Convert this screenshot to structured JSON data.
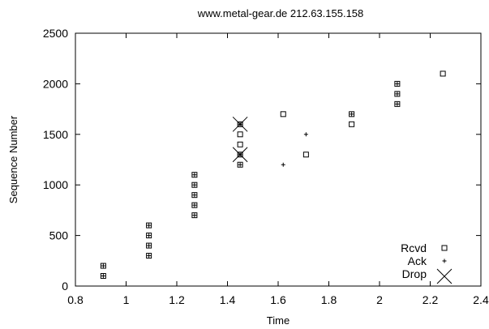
{
  "chart_data": {
    "type": "scatter",
    "title": "www.metal-gear.de 212.63.155.158",
    "xlabel": "Time",
    "ylabel": "Sequence Number",
    "xlim": [
      0.8,
      2.4
    ],
    "ylim": [
      0,
      2500
    ],
    "xticks": [
      0.8,
      1,
      1.2,
      1.4,
      1.6,
      1.8,
      2,
      2.2,
      2.4
    ],
    "yticks": [
      0,
      500,
      1000,
      1500,
      2000,
      2500
    ],
    "xtick_labels": [
      "0.8",
      "1",
      "1.2",
      "1.4",
      "1.6",
      "1.8",
      "2",
      "2.2",
      "2.4"
    ],
    "ytick_labels": [
      "0",
      "500",
      "1000",
      "1500",
      "2000",
      "2500"
    ],
    "grid": false,
    "legend_position": "bottom-right",
    "series": [
      {
        "name": "Rcvd",
        "marker": "square",
        "points": [
          [
            0.91,
            100
          ],
          [
            0.91,
            200
          ],
          [
            1.09,
            300
          ],
          [
            1.09,
            400
          ],
          [
            1.09,
            500
          ],
          [
            1.09,
            600
          ],
          [
            1.27,
            700
          ],
          [
            1.27,
            800
          ],
          [
            1.27,
            900
          ],
          [
            1.27,
            1000
          ],
          [
            1.27,
            1100
          ],
          [
            1.45,
            1200
          ],
          [
            1.45,
            1300
          ],
          [
            1.45,
            1400
          ],
          [
            1.45,
            1500
          ],
          [
            1.45,
            1600
          ],
          [
            1.62,
            1700
          ],
          [
            1.71,
            1300
          ],
          [
            1.89,
            1600
          ],
          [
            1.89,
            1700
          ],
          [
            2.07,
            1800
          ],
          [
            2.07,
            1900
          ],
          [
            2.07,
            2000
          ],
          [
            2.25,
            2100
          ]
        ]
      },
      {
        "name": "Ack",
        "marker": "plus",
        "points": [
          [
            0.91,
            100
          ],
          [
            0.91,
            200
          ],
          [
            1.09,
            300
          ],
          [
            1.09,
            400
          ],
          [
            1.09,
            500
          ],
          [
            1.09,
            600
          ],
          [
            1.27,
            700
          ],
          [
            1.27,
            800
          ],
          [
            1.27,
            900
          ],
          [
            1.27,
            1000
          ],
          [
            1.27,
            1100
          ],
          [
            1.45,
            1200
          ],
          [
            1.45,
            1300
          ],
          [
            1.45,
            1600
          ],
          [
            1.62,
            1200
          ],
          [
            1.71,
            1500
          ],
          [
            1.89,
            1700
          ],
          [
            2.07,
            1800
          ],
          [
            2.07,
            1900
          ],
          [
            2.07,
            2000
          ]
        ]
      },
      {
        "name": "Drop",
        "marker": "x",
        "points": [
          [
            1.45,
            1300
          ],
          [
            1.45,
            1600
          ]
        ]
      }
    ]
  }
}
